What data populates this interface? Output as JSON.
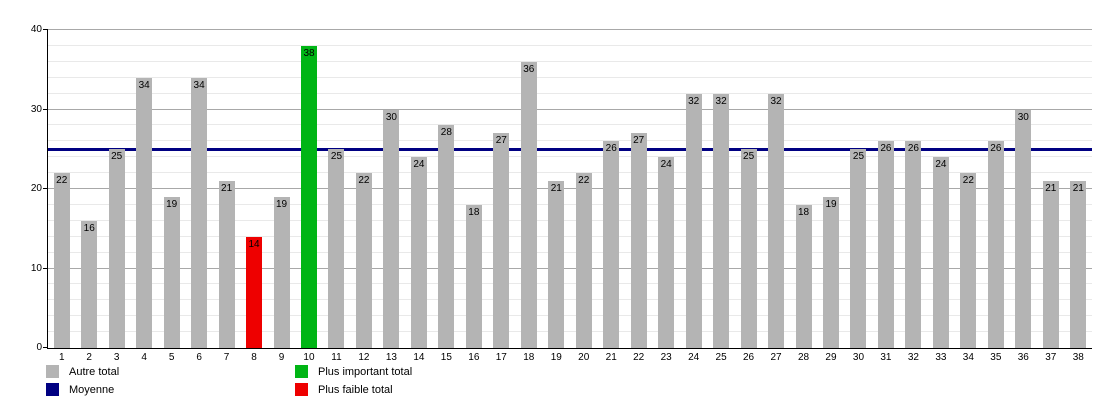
{
  "chart_data": {
    "type": "bar",
    "title": "",
    "xlabel": "",
    "ylabel": "",
    "categories": [
      "1",
      "2",
      "3",
      "4",
      "5",
      "6",
      "7",
      "8",
      "9",
      "10",
      "11",
      "12",
      "13",
      "14",
      "15",
      "16",
      "17",
      "18",
      "19",
      "20",
      "21",
      "22",
      "23",
      "24",
      "25",
      "26",
      "27",
      "28",
      "29",
      "30",
      "31",
      "32",
      "33",
      "34",
      "35",
      "36",
      "37",
      "38"
    ],
    "values": [
      22,
      16,
      25,
      34,
      19,
      34,
      21,
      14,
      19,
      38,
      25,
      22,
      30,
      24,
      28,
      18,
      27,
      36,
      21,
      22,
      26,
      27,
      24,
      32,
      32,
      25,
      32,
      18,
      19,
      25,
      26,
      26,
      24,
      22,
      26,
      30,
      21,
      21
    ],
    "ylim": [
      0,
      40
    ],
    "y_ticks": [
      0,
      10,
      20,
      30,
      40
    ],
    "minor_grid_step": 2,
    "grid": "on",
    "bar_default_color": "#b4b4b4",
    "mean_line": {
      "label": "Moyenne",
      "value": 25.03,
      "color": "#000082"
    },
    "highlight_max": {
      "label": "Plus important total",
      "category": "10",
      "value": 38,
      "color": "#00b515"
    },
    "highlight_min": {
      "label": "Plus faible total",
      "category": "8",
      "value": 14,
      "color": "#ee0000"
    },
    "grid_major_color": "#a8a8a8",
    "grid_minor_color": "#e9e9e9",
    "legend_position": "bottom",
    "legend": [
      {
        "label": "Autre total",
        "color": "#b4b4b4"
      },
      {
        "label": "Moyenne",
        "color": "#000082"
      },
      {
        "label": "Plus important total",
        "color": "#00b515"
      },
      {
        "label": "Plus faible total",
        "color": "#ee0000"
      }
    ]
  }
}
